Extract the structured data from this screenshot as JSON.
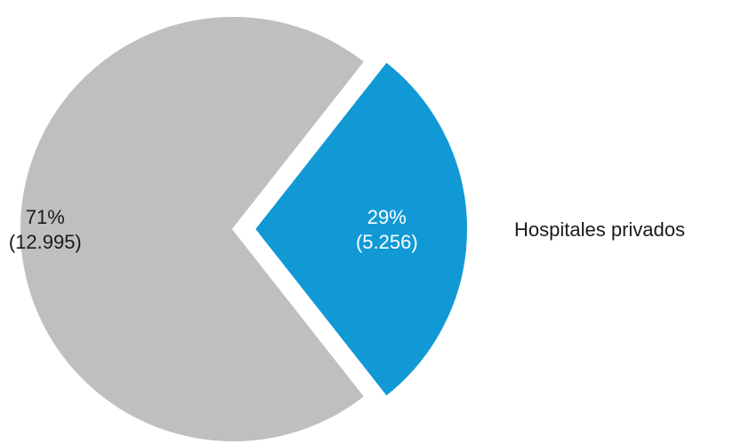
{
  "chart_data": {
    "type": "pie",
    "title": "",
    "slices": [
      {
        "name": "",
        "value": 12995,
        "percent_label": "71%",
        "value_label": "(12.995)",
        "color": "#bfbfbf",
        "label_color": "#1a1a1a",
        "exploded": false
      },
      {
        "name": "Hospitales privados",
        "value": 5256,
        "percent_label": "29%",
        "value_label": "(5.256)",
        "color": "#1199d6",
        "label_color": "#ffffff",
        "exploded": true
      }
    ],
    "legend": {
      "entries": [
        "Hospitales privados"
      ],
      "position": "right"
    }
  }
}
